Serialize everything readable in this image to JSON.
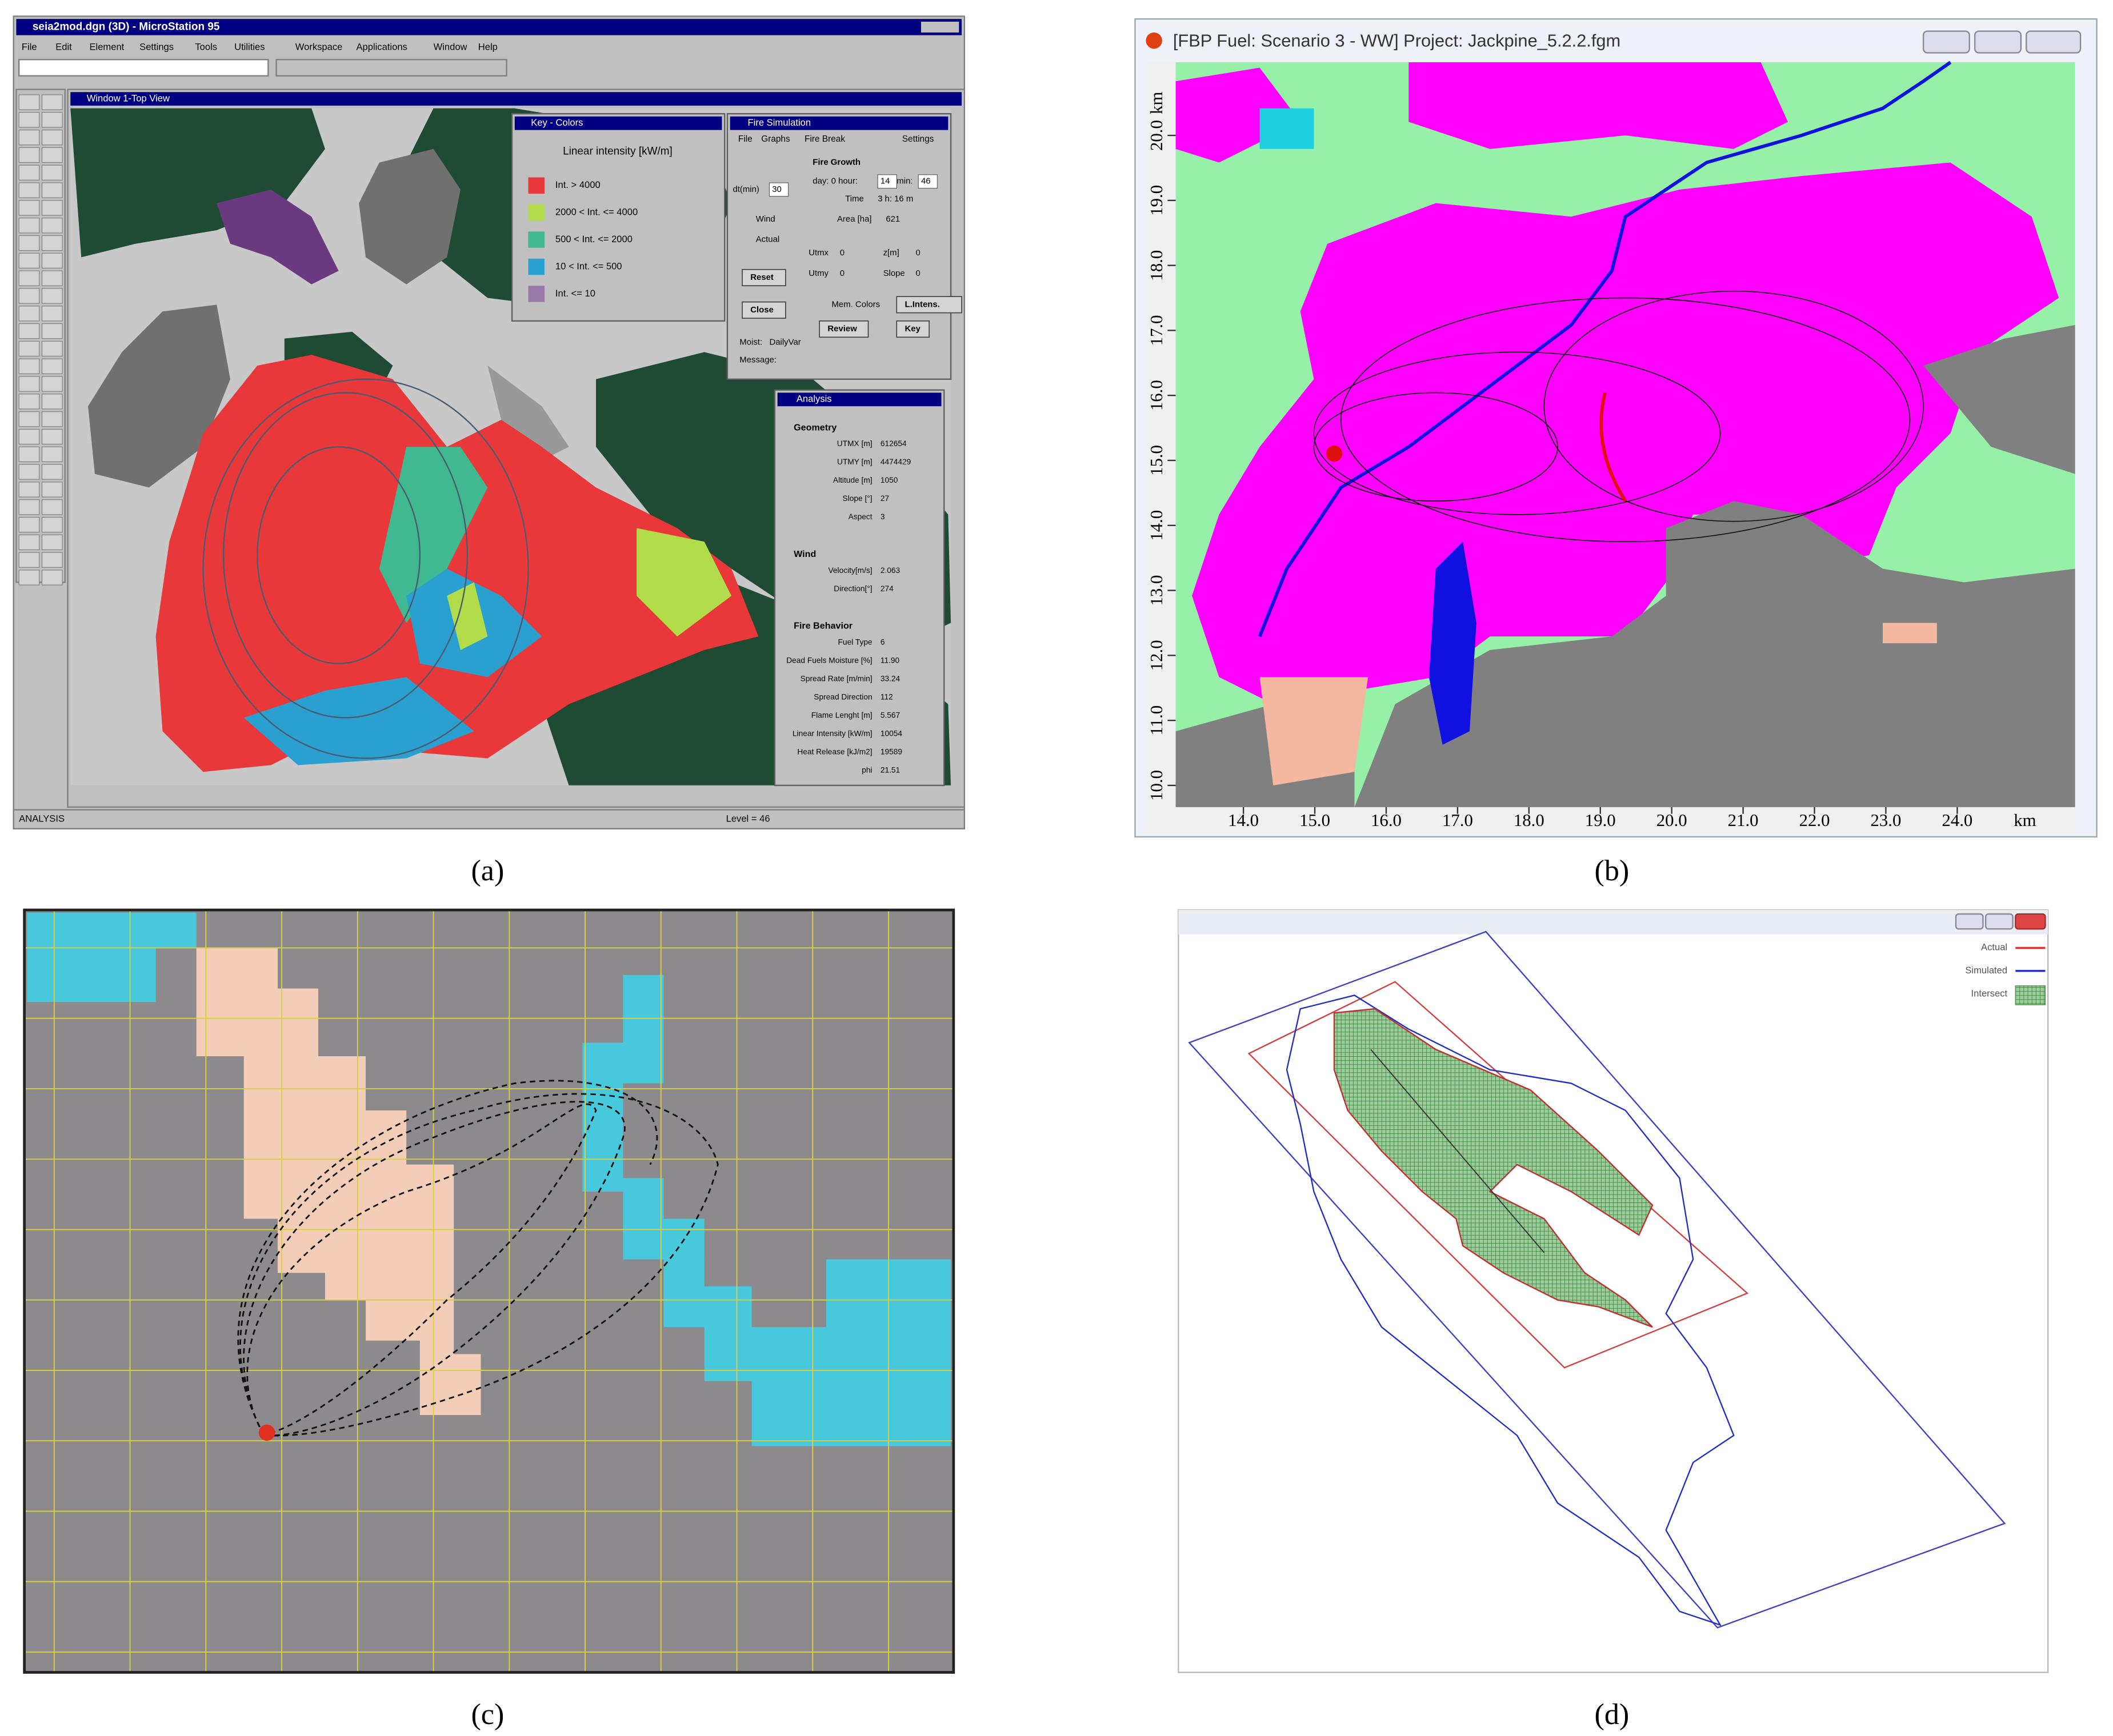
{
  "panel_a": {
    "caption": "(a)",
    "window_title": "seia2mod.dgn (3D) - MicroStation 95",
    "menu": [
      "File",
      "Edit",
      "Element",
      "Settings",
      "Tools",
      "Utilities",
      "Workspace",
      "Applications",
      "Window",
      "Help"
    ],
    "view_title": "Window 1-Top View",
    "key_window": {
      "title": "Key - Colors",
      "heading": "Linear intensity [kW/m]",
      "entries": [
        {
          "label": "Int. > 4000",
          "color": "#e8383a"
        },
        {
          "label": "2000 < Int. <= 4000",
          "color": "#b2dc4a"
        },
        {
          "label": "500 < Int. <= 2000",
          "color": "#40b890"
        },
        {
          "label": "10 < Int. <= 500",
          "color": "#2aa0d0"
        },
        {
          "label": "Int. <= 10",
          "color": "#9878a8"
        }
      ]
    },
    "fire_simulation": {
      "title": "Fire Simulation",
      "menu": [
        "File",
        "Graphs",
        "Fire Break",
        "Settings"
      ],
      "texts": [
        "Fire Growth",
        "day:  0  hour:",
        "14",
        "min:",
        "46",
        "Time",
        "3 h: 16 m",
        "Area [ha]",
        "621",
        "dt(min)",
        "30",
        "Wind",
        "Actual",
        "Reset",
        "Close",
        "Utmx",
        "0",
        "z[m]",
        "0",
        "Utmy",
        "0",
        "Slope",
        "0",
        "Mem. Colors",
        "L.Intens.",
        "Review",
        "Key",
        "Moist:",
        "DailyVar",
        "Message:"
      ]
    },
    "analysis": {
      "title": "Analysis",
      "groups": [
        {
          "name": "Geometry",
          "rows": [
            [
              "UTMX [m]",
              "612654"
            ],
            [
              "UTMY [m]",
              "4474429"
            ],
            [
              "Altitude [m]",
              "1050"
            ],
            [
              "Slope [°]",
              "27"
            ],
            [
              "Aspect",
              "3"
            ]
          ]
        },
        {
          "name": "Wind",
          "rows": [
            [
              "Velocity[m/s]",
              "2.063"
            ],
            [
              "Direction[°]",
              "274"
            ]
          ]
        },
        {
          "name": "Fire Behavior",
          "rows": [
            [
              "Fuel Type",
              "6"
            ],
            [
              "Dead Fuels Moisture [%]",
              "11.90"
            ],
            [
              "Spread Rate [m/min]",
              "33.24"
            ],
            [
              "Spread Direction",
              "112"
            ],
            [
              "Flame Lenght [m]",
              "5.567"
            ],
            [
              "Linear Intensity [kW/m]",
              "10054"
            ],
            [
              "Heat Release [kJ/m2]",
              "19589"
            ],
            [
              "phi",
              "21.51"
            ]
          ]
        }
      ]
    },
    "status": "ANALYSIS",
    "level": "Level = 46"
  },
  "panel_b": {
    "caption": "(b)",
    "window_title": "[FBP Fuel: Scenario 3 - WW] Project: Jackpine_5.2.2.fgm",
    "y_unit": "km",
    "y_ticks": [
      "20.0",
      "19.0",
      "18.0",
      "17.0",
      "16.0",
      "15.0",
      "14.0",
      "13.0",
      "12.0",
      "11.0",
      "10.0"
    ],
    "x_unit": "km",
    "x_ticks": [
      "14.0",
      "15.0",
      "16.0",
      "17.0",
      "18.0",
      "19.0",
      "20.0",
      "21.0",
      "22.0",
      "23.0",
      "24.0"
    ]
  },
  "panel_c": {
    "caption": "(c)"
  },
  "panel_d": {
    "caption": "(d)",
    "legend": [
      {
        "label": "Actual",
        "color": "#e03030"
      },
      {
        "label": "Simulated",
        "color": "#2030c0"
      },
      {
        "label": "Intersect",
        "color": "#4a9a4a"
      }
    ]
  }
}
